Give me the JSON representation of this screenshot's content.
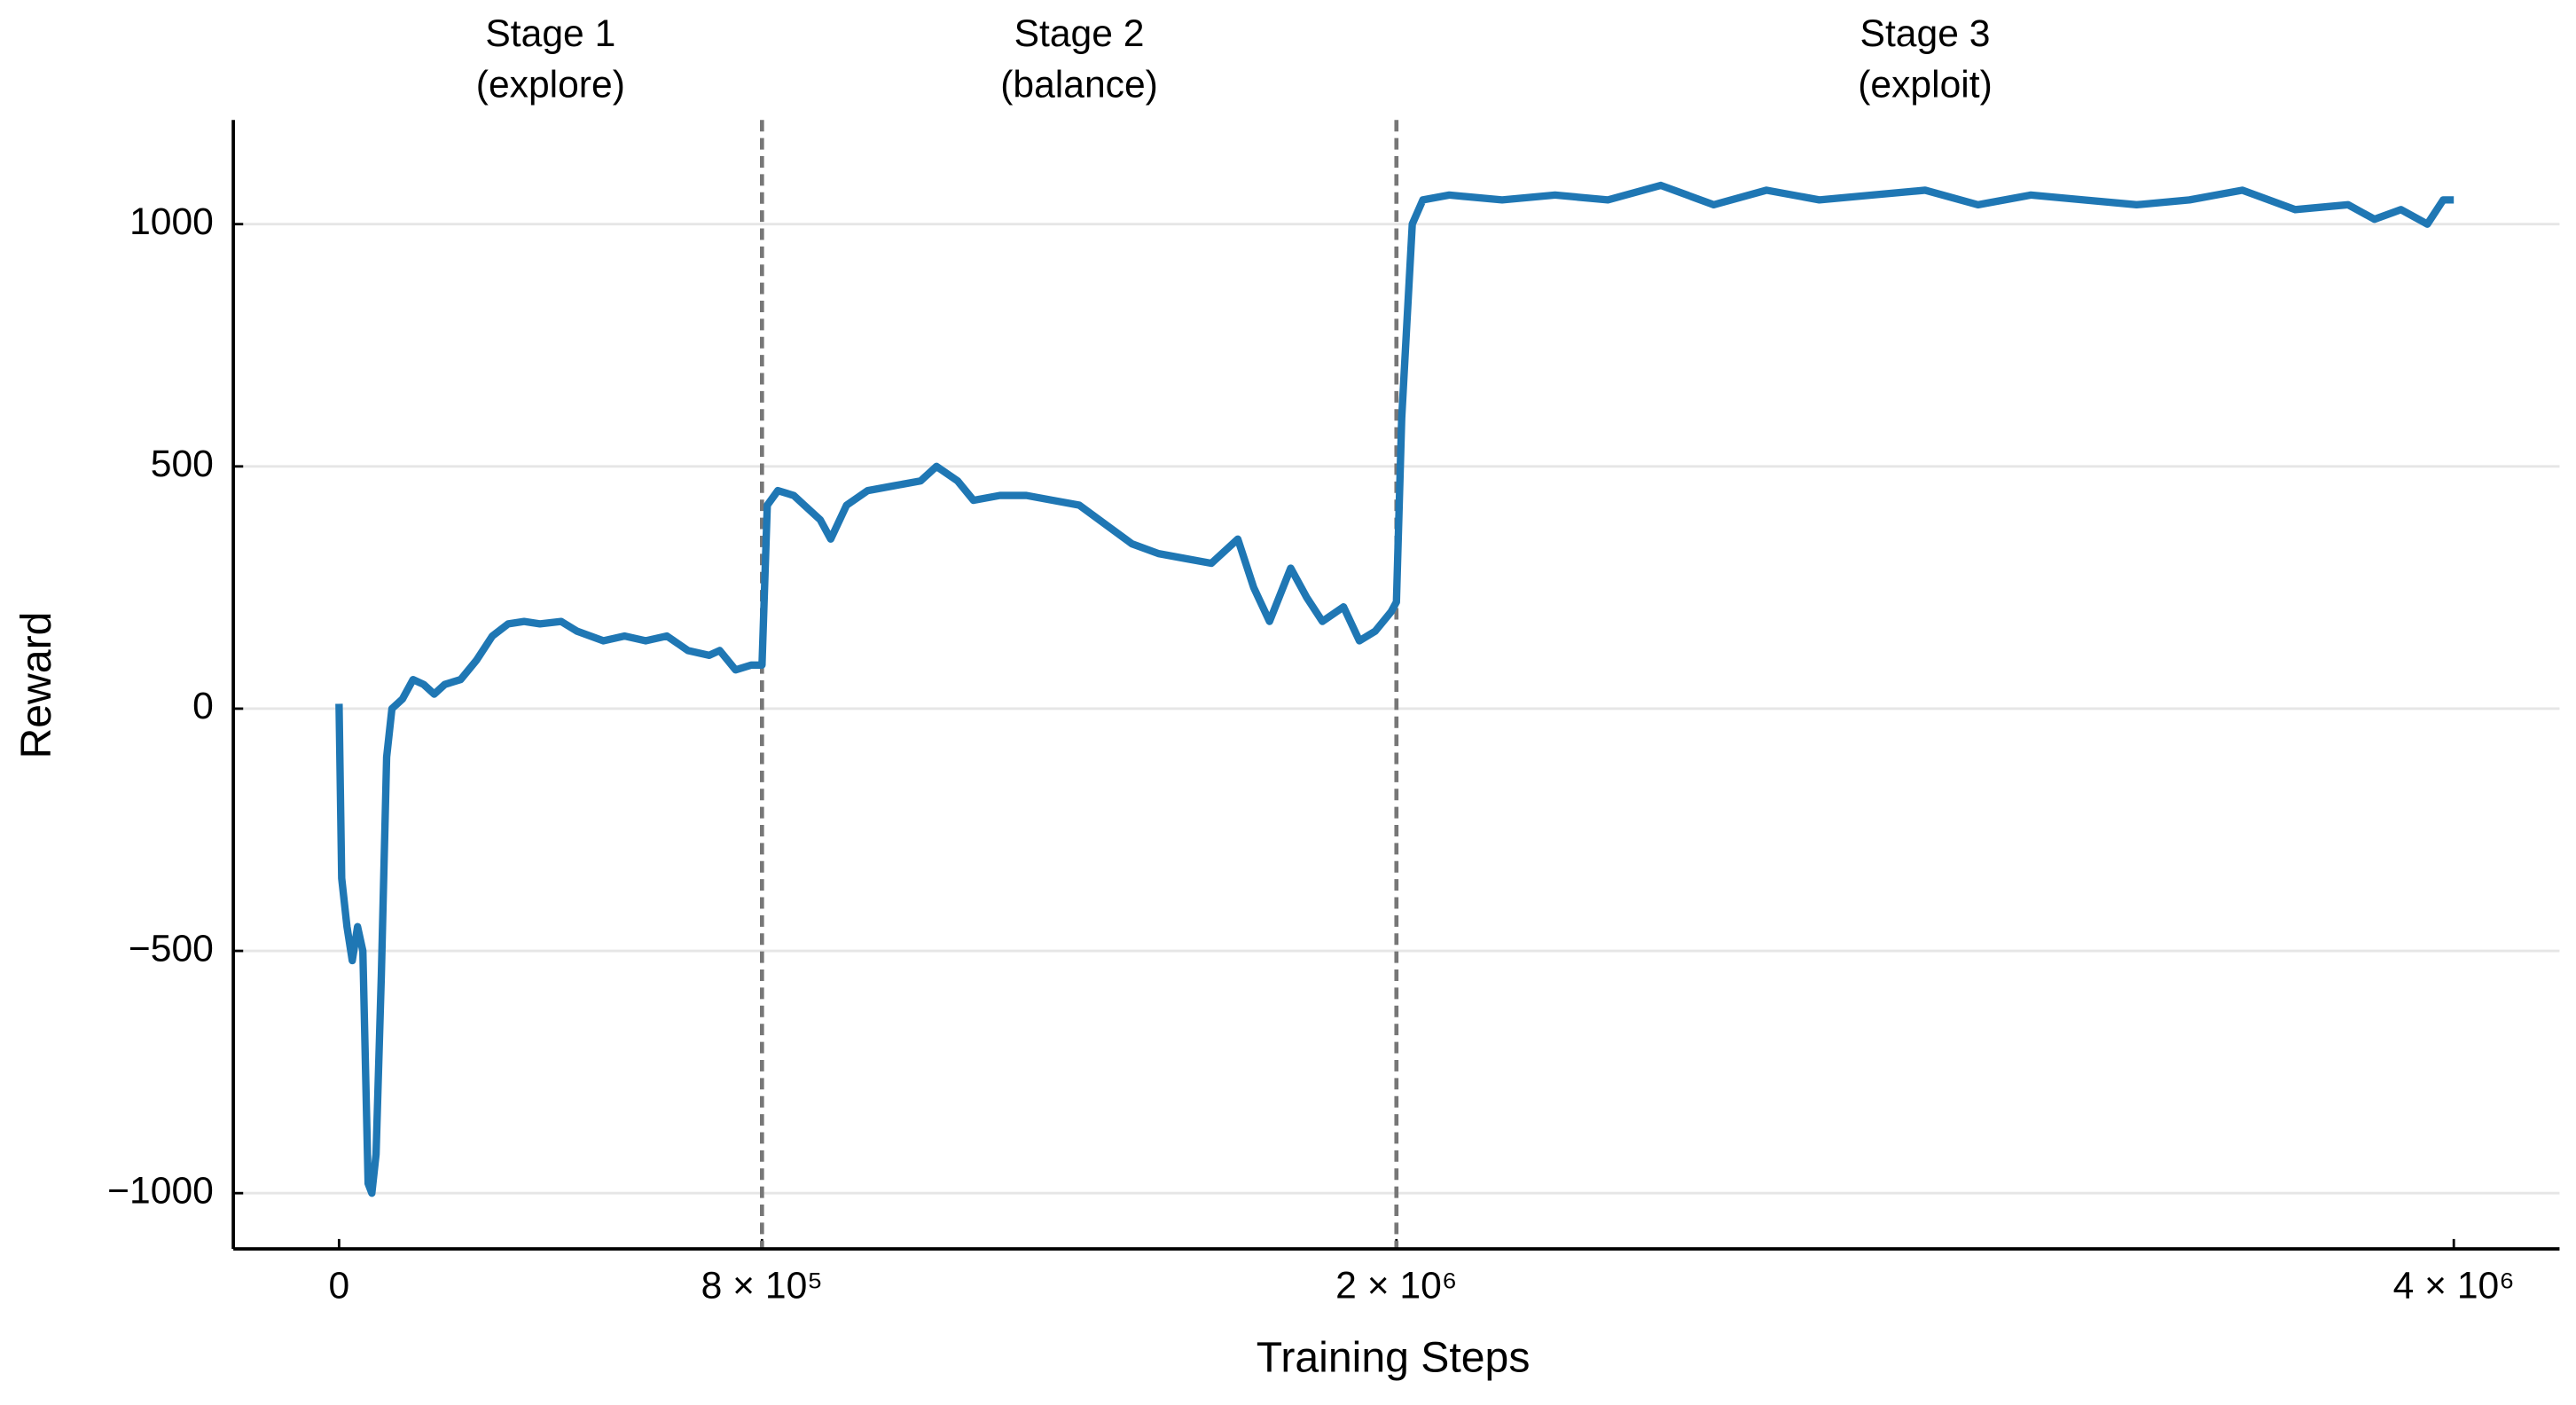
{
  "chart_data": {
    "type": "line",
    "xlabel": "Training Steps",
    "ylabel": "Reward",
    "xlim": [
      -200000,
      4200000
    ],
    "ylim": [
      -1115,
      1215
    ],
    "xticks": [
      0,
      {
        "value": 800000,
        "label": "8 × 10⁵"
      },
      {
        "value": 2000000,
        "label": "2 × 10⁶"
      },
      {
        "value": 4000000,
        "label": "4 × 10⁶"
      }
    ],
    "yticks": [
      {
        "value": -1000,
        "label": "−1000"
      },
      {
        "value": -500,
        "label": "−500"
      },
      0,
      500,
      1000
    ],
    "grid": true,
    "boundaries": [
      800000,
      2000000
    ],
    "stages": [
      {
        "label": "Stage 1",
        "sublabel": "(explore)"
      },
      {
        "label": "Stage 2",
        "sublabel": "(balance)"
      },
      {
        "label": "Stage 3",
        "sublabel": "(exploit)"
      }
    ],
    "series": [
      {
        "color": "#1f77b4",
        "x": [
          0,
          5000,
          15000,
          25000,
          35000,
          45000,
          55000,
          62000,
          70000,
          80000,
          90000,
          100000,
          120000,
          140000,
          160000,
          180000,
          200000,
          230000,
          260000,
          290000,
          320000,
          350000,
          380000,
          420000,
          450000,
          500000,
          540000,
          580000,
          620000,
          660000,
          700000,
          720000,
          750000,
          780000,
          800000,
          810000,
          830000,
          860000,
          880000,
          910000,
          930000,
          960000,
          1000000,
          1050000,
          1100000,
          1130000,
          1170000,
          1200000,
          1250000,
          1300000,
          1350000,
          1400000,
          1450000,
          1500000,
          1550000,
          1600000,
          1650000,
          1700000,
          1730000,
          1760000,
          1800000,
          1830000,
          1860000,
          1900000,
          1930000,
          1960000,
          1990000,
          2000000,
          2010000,
          2030000,
          2050000,
          2100000,
          2200000,
          2300000,
          2400000,
          2500000,
          2600000,
          2700000,
          2800000,
          2900000,
          3000000,
          3100000,
          3200000,
          3300000,
          3400000,
          3500000,
          3600000,
          3700000,
          3800000,
          3850000,
          3900000,
          3950000,
          3980000,
          4000000
        ],
        "values": [
          10,
          -350,
          -450,
          -520,
          -450,
          -500,
          -980,
          -1000,
          -920,
          -550,
          -100,
          0,
          20,
          60,
          50,
          30,
          50,
          60,
          100,
          150,
          175,
          180,
          175,
          180,
          160,
          140,
          150,
          140,
          150,
          120,
          110,
          120,
          80,
          90,
          90,
          420,
          450,
          440,
          420,
          390,
          350,
          420,
          450,
          460,
          470,
          500,
          470,
          430,
          440,
          440,
          430,
          420,
          380,
          340,
          320,
          310,
          300,
          350,
          250,
          180,
          290,
          230,
          180,
          210,
          140,
          160,
          200,
          220,
          600,
          1000,
          1050,
          1060,
          1050,
          1060,
          1050,
          1080,
          1040,
          1070,
          1050,
          1060,
          1070,
          1040,
          1060,
          1050,
          1040,
          1050,
          1070,
          1030,
          1040,
          1010,
          1030,
          1000,
          1050,
          1050
        ]
      }
    ]
  }
}
